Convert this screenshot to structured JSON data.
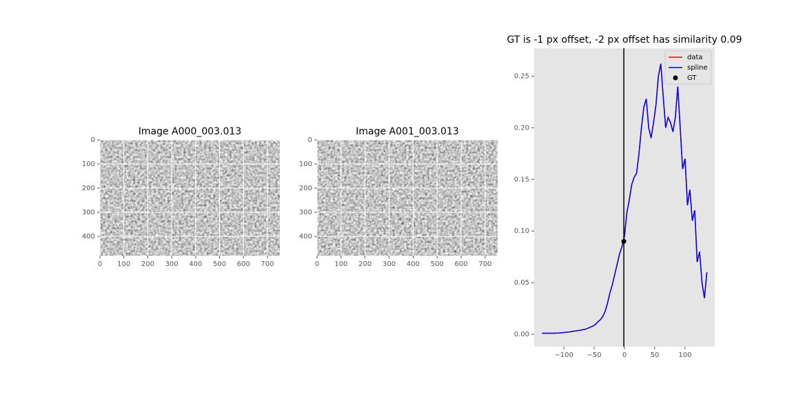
{
  "chart_data": [
    {
      "type": "image",
      "title": "Image A000_003.013",
      "xlim": [
        0,
        752
      ],
      "ylim": [
        480,
        0
      ],
      "xticks": [
        0,
        100,
        200,
        300,
        400,
        500,
        600,
        700
      ],
      "yticks": [
        0,
        100,
        200,
        300,
        400
      ],
      "grid": true
    },
    {
      "type": "image",
      "title": "Image A001_003.013",
      "xlim": [
        0,
        752
      ],
      "ylim": [
        480,
        0
      ],
      "xticks": [
        0,
        100,
        200,
        300,
        400,
        500,
        600,
        700
      ],
      "yticks": [
        0,
        100,
        200,
        300,
        400
      ],
      "grid": true
    },
    {
      "type": "line",
      "title": "GT is -1 px offset, -2 px offset has similarity 0.09",
      "x": [
        -136,
        -132,
        -128,
        -124,
        -120,
        -116,
        -112,
        -108,
        -104,
        -100,
        -96,
        -92,
        -88,
        -84,
        -80,
        -76,
        -72,
        -68,
        -64,
        -60,
        -56,
        -52,
        -48,
        -44,
        -40,
        -36,
        -32,
        -28,
        -24,
        -20,
        -16,
        -12,
        -8,
        -4,
        0,
        4,
        8,
        12,
        16,
        20,
        24,
        28,
        32,
        36,
        40,
        44,
        48,
        52,
        56,
        60,
        64,
        68,
        72,
        76,
        80,
        84,
        88,
        92,
        96,
        100,
        104,
        108,
        112,
        116,
        120,
        124,
        128,
        132,
        136
      ],
      "series": [
        {
          "name": "data",
          "color": "#ff0000",
          "values": [
            0.001,
            0.001,
            0.001,
            0.001,
            0.001,
            0.001,
            0.0012,
            0.0013,
            0.0015,
            0.0017,
            0.002,
            0.0022,
            0.0025,
            0.003,
            0.0033,
            0.0037,
            0.004,
            0.0045,
            0.005,
            0.006,
            0.007,
            0.008,
            0.0095,
            0.012,
            0.014,
            0.017,
            0.022,
            0.03,
            0.04,
            0.048,
            0.058,
            0.068,
            0.078,
            0.085,
            0.095,
            0.118,
            0.13,
            0.145,
            0.152,
            0.156,
            0.175,
            0.2,
            0.22,
            0.228,
            0.2,
            0.19,
            0.205,
            0.222,
            0.25,
            0.262,
            0.23,
            0.2,
            0.21,
            0.205,
            0.196,
            0.21,
            0.24,
            0.2,
            0.16,
            0.17,
            0.125,
            0.14,
            0.11,
            0.12,
            0.07,
            0.08,
            0.05,
            0.035,
            0.06
          ]
        },
        {
          "name": "spline",
          "color": "#0000ff",
          "values": [
            0.001,
            0.001,
            0.001,
            0.001,
            0.001,
            0.001,
            0.0012,
            0.0013,
            0.0015,
            0.0017,
            0.002,
            0.0022,
            0.0025,
            0.003,
            0.0033,
            0.0037,
            0.004,
            0.0045,
            0.005,
            0.006,
            0.007,
            0.008,
            0.0095,
            0.012,
            0.014,
            0.017,
            0.022,
            0.03,
            0.04,
            0.048,
            0.058,
            0.068,
            0.078,
            0.085,
            0.095,
            0.118,
            0.13,
            0.145,
            0.152,
            0.156,
            0.175,
            0.2,
            0.22,
            0.228,
            0.2,
            0.19,
            0.205,
            0.222,
            0.25,
            0.262,
            0.23,
            0.2,
            0.21,
            0.205,
            0.196,
            0.21,
            0.24,
            0.2,
            0.16,
            0.17,
            0.125,
            0.14,
            0.11,
            0.12,
            0.07,
            0.08,
            0.05,
            0.035,
            0.06
          ]
        }
      ],
      "points": {
        "name": "GT",
        "color": "#000000",
        "x": [
          -1
        ],
        "values": [
          0.09
        ]
      },
      "vline": -1,
      "xlim": [
        -149,
        149
      ],
      "ylim": [
        -0.012,
        0.277
      ],
      "xticks": [
        {
          "value": -100,
          "label": "−100"
        },
        {
          "value": -50,
          "label": "−50"
        },
        0,
        50,
        100
      ],
      "yticks": [
        {
          "value": 0,
          "label": "0.00"
        },
        {
          "value": 0.05,
          "label": "0.05"
        },
        {
          "value": 0.1,
          "label": "0.10"
        },
        {
          "value": 0.15,
          "label": "0.15"
        },
        {
          "value": 0.2,
          "label": "0.20"
        },
        {
          "value": 0.25,
          "label": "0.25"
        }
      ],
      "grid": false,
      "legend": "upper right"
    }
  ]
}
